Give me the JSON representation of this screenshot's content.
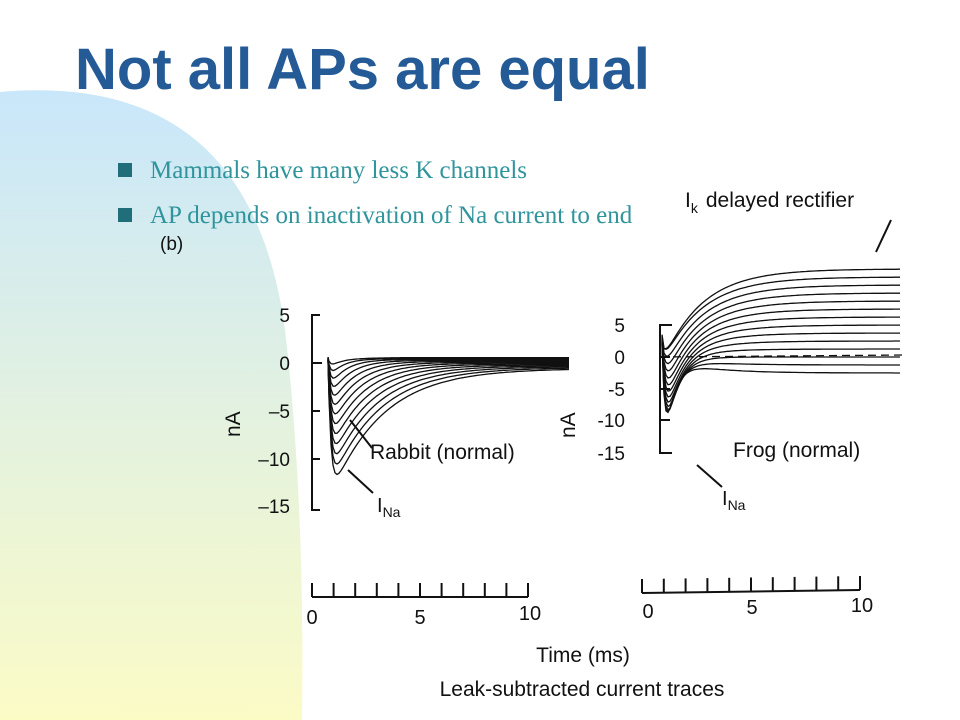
{
  "title": "Not all APs are equal",
  "bullets": [
    "Mammals have many less K channels",
    "AP depends on inactivation of Na current to end"
  ],
  "figure": {
    "panel_label": "(b)",
    "top_label": {
      "symbol": "I",
      "subscript": "k",
      "text": "delayed rectifier"
    },
    "left_panel": {
      "y_ticks": [
        "5",
        "0",
        "–5",
        "–10",
        "–15"
      ],
      "y_label": "nA",
      "x_ticks": [
        "0",
        "5",
        "10"
      ],
      "caption": "Rabbit (normal)",
      "arrow_label": {
        "symbol": "I",
        "subscript": "Na"
      }
    },
    "right_panel": {
      "y_ticks": [
        "5",
        "0",
        "-5",
        "-10",
        "-15"
      ],
      "y_label": "nA",
      "x_ticks": [
        "0",
        "5",
        "10"
      ],
      "caption": "Frog (normal)",
      "arrow_label": {
        "symbol": "I",
        "subscript": "Na"
      }
    },
    "x_label": "Time (ms)",
    "footer": "Leak-subtracted current traces"
  }
}
